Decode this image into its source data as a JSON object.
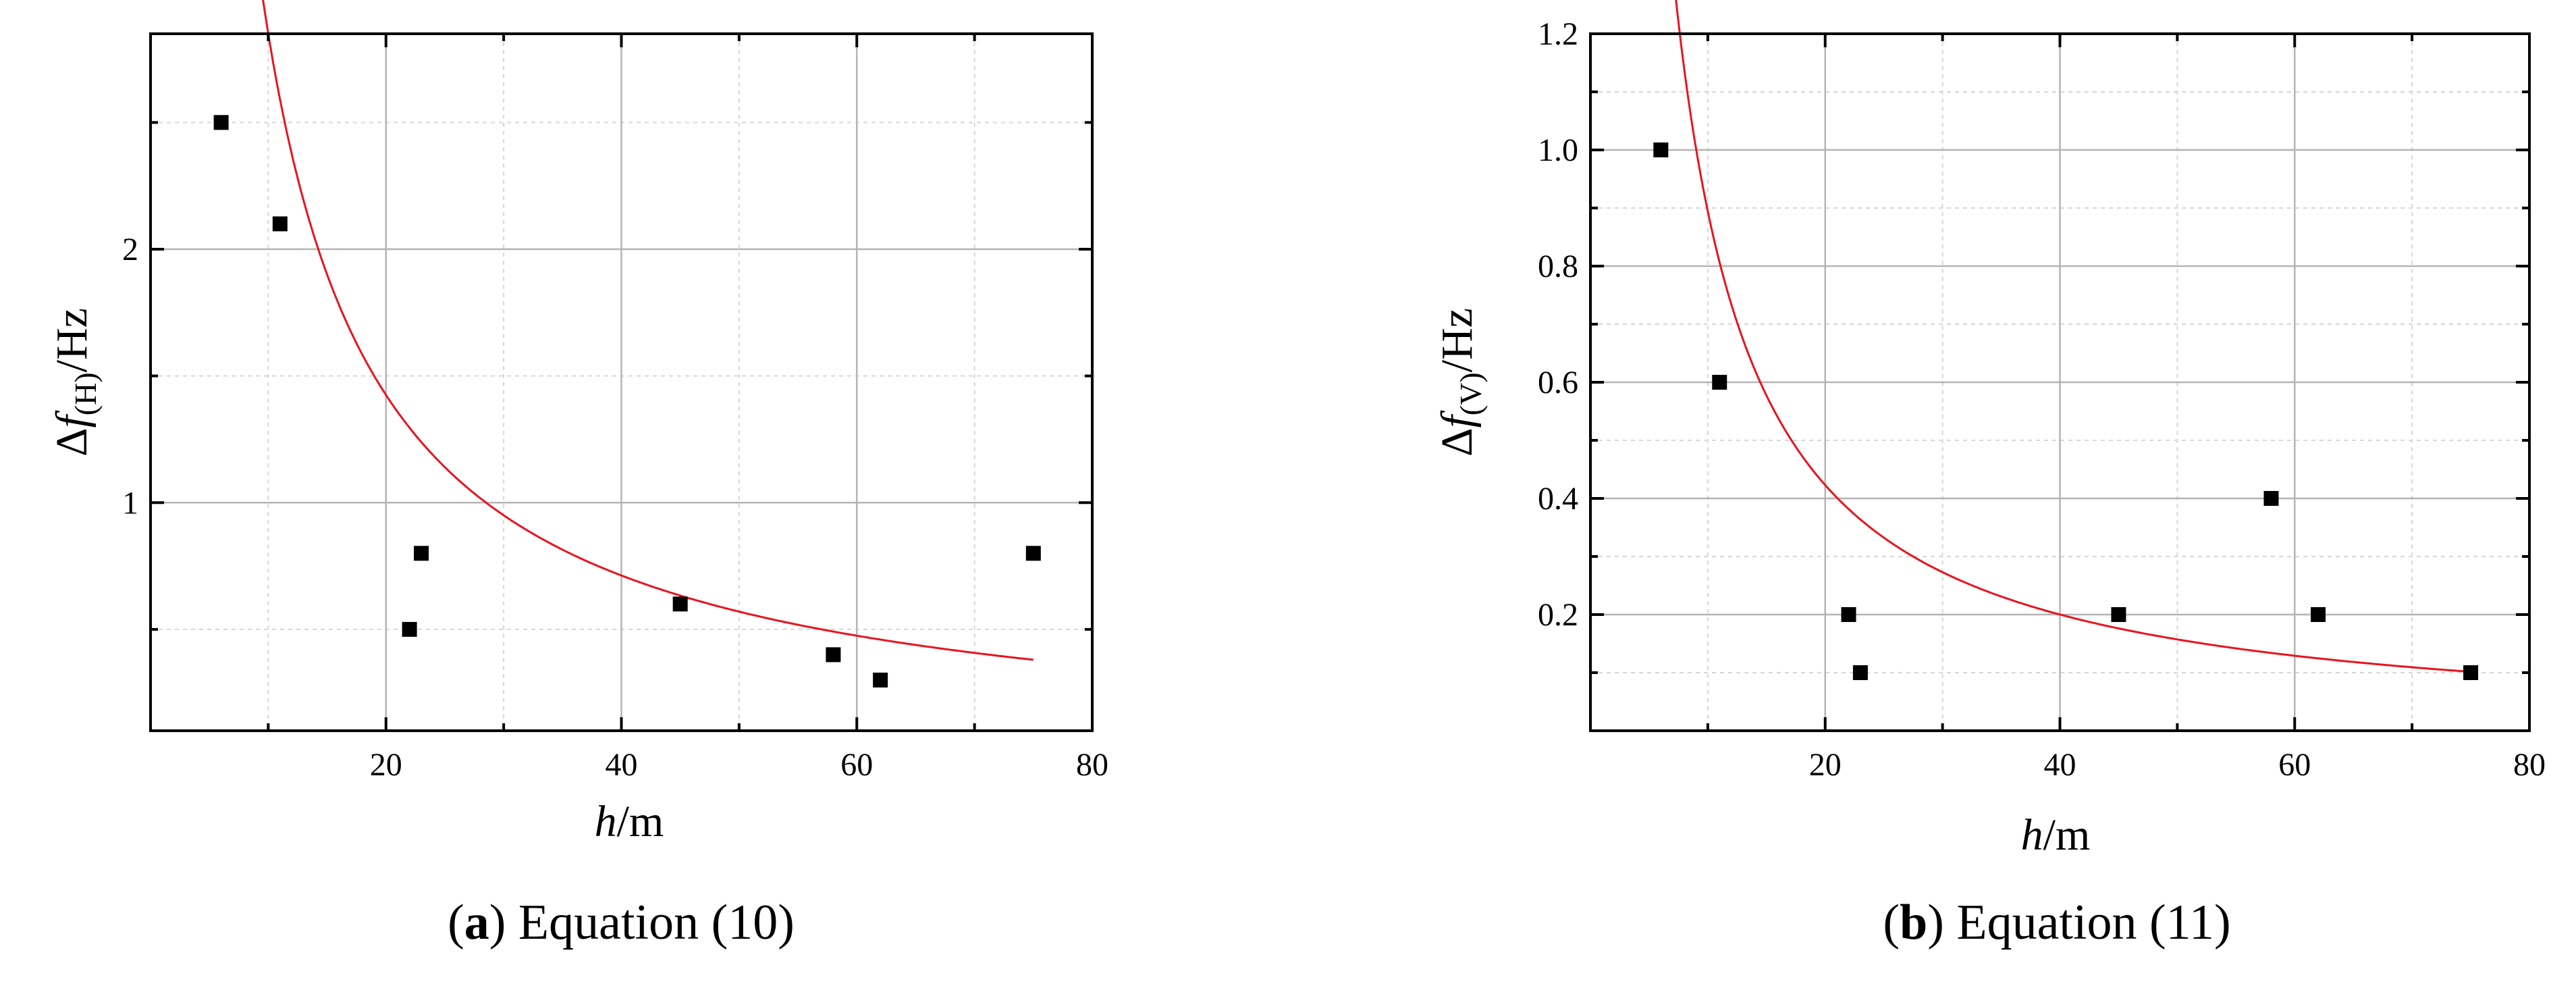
{
  "chart_data": [
    {
      "type": "scatter",
      "panel": "a",
      "caption_letter": "a",
      "caption_text": "Equation (10)",
      "xlabel_italic": "h",
      "xlabel_unit": "/m",
      "ylabel_prefix": "Δ",
      "ylabel_f": "f",
      "ylabel_sub": "(H)",
      "ylabel_unit": "/Hz",
      "xlim": [
        0,
        80
      ],
      "ylim": [
        0.1,
        2.85
      ],
      "xticks": [
        20,
        40,
        60,
        80
      ],
      "xminor": [
        10,
        30,
        50,
        70
      ],
      "yticks": [
        1,
        2
      ],
      "yminor": [
        0.5,
        1.5,
        2.5
      ],
      "grid": true,
      "x": [
        6,
        11,
        22,
        23,
        45,
        58,
        62,
        75
      ],
      "y": [
        2.5,
        2.1,
        0.5,
        0.8,
        0.6,
        0.4,
        0.3,
        0.8
      ],
      "fit": {
        "form": "a/h",
        "a": 28.5,
        "x_range": [
          5.5,
          75
        ]
      },
      "colors": {
        "points": "#000000",
        "fit": "#e8141e"
      }
    },
    {
      "type": "scatter",
      "panel": "b",
      "caption_letter": "b",
      "caption_text": "Equation (11)",
      "xlabel_italic": "h",
      "xlabel_unit": "/m",
      "ylabel_prefix": "Δ",
      "ylabel_f": "f",
      "ylabel_sub": "(V)",
      "ylabel_unit": "/Hz",
      "xlim": [
        0,
        80
      ],
      "ylim": [
        0.0,
        1.2
      ],
      "xticks": [
        20,
        40,
        60,
        80
      ],
      "xminor": [
        10,
        30,
        50,
        70
      ],
      "yticks": [
        0.2,
        0.4,
        0.6,
        0.8,
        1.0,
        1.2
      ],
      "ytick_labels": [
        "0.2",
        "0.4",
        "0.6",
        "0.8",
        "1.0",
        "1.2"
      ],
      "yminor": [
        0.1,
        0.3,
        0.5,
        0.7,
        0.9,
        1.1
      ],
      "grid": true,
      "x": [
        6,
        11,
        22,
        23,
        45,
        58,
        62,
        75
      ],
      "y": [
        1.0,
        0.6,
        0.2,
        0.1,
        0.2,
        0.4,
        0.2,
        0.1
      ],
      "fit": {
        "form": "a/h^b",
        "a": 10.75,
        "b": 1.08,
        "x_range": [
          6,
          75
        ]
      },
      "colors": {
        "points": "#000000",
        "fit": "#e8141e"
      }
    }
  ]
}
